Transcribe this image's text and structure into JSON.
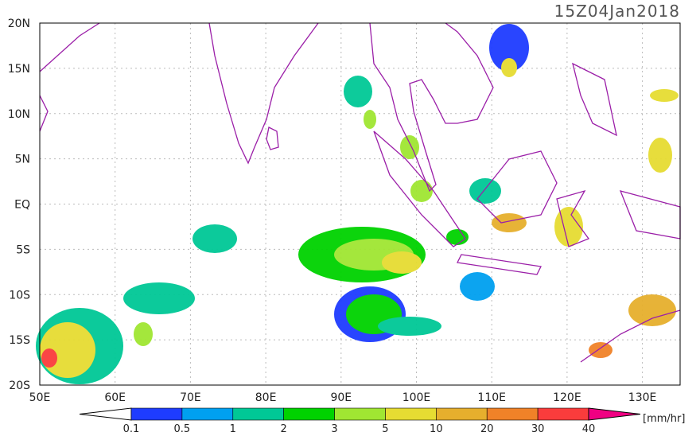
{
  "title": "15Z04Jan2018",
  "lat_labels": [
    "20N",
    "15N",
    "10N",
    "5N",
    "EQ",
    "5S",
    "10S",
    "15S",
    "20S"
  ],
  "lon_labels": [
    "50E",
    "60E",
    "70E",
    "80E",
    "90E",
    "100E",
    "110E",
    "120E",
    "130E"
  ],
  "colorbar": {
    "levels": [
      0.1,
      0.5,
      1,
      2,
      3,
      5,
      10,
      20,
      30,
      40
    ],
    "colors": [
      "#1e3cff",
      "#00a0f0",
      "#00c896",
      "#00d200",
      "#a0e632",
      "#e6dc32",
      "#e6af2d",
      "#f08228",
      "#fa3c3c"
    ],
    "over_color": "#f00082",
    "unit": "[mm/hr]"
  }
}
